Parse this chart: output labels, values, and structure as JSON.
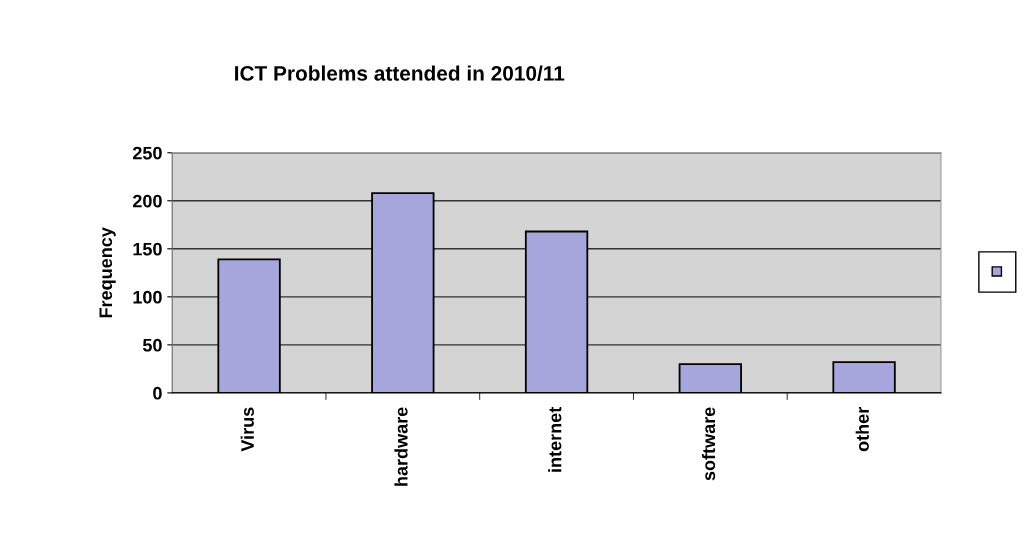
{
  "chart_data": {
    "type": "bar",
    "title": "ICT Problems attended in 2010/11",
    "ylabel": "Frequency",
    "categories": [
      "Virus",
      "hardware",
      "internet",
      "software",
      "other"
    ],
    "series": [
      {
        "color": "#a6a6dc",
        "values": [
          139,
          208,
          168,
          30,
          32
        ]
      }
    ],
    "ylim": [
      0,
      250
    ],
    "yticks": [
      0,
      50,
      100,
      150,
      200,
      250
    ],
    "grid": "y"
  }
}
